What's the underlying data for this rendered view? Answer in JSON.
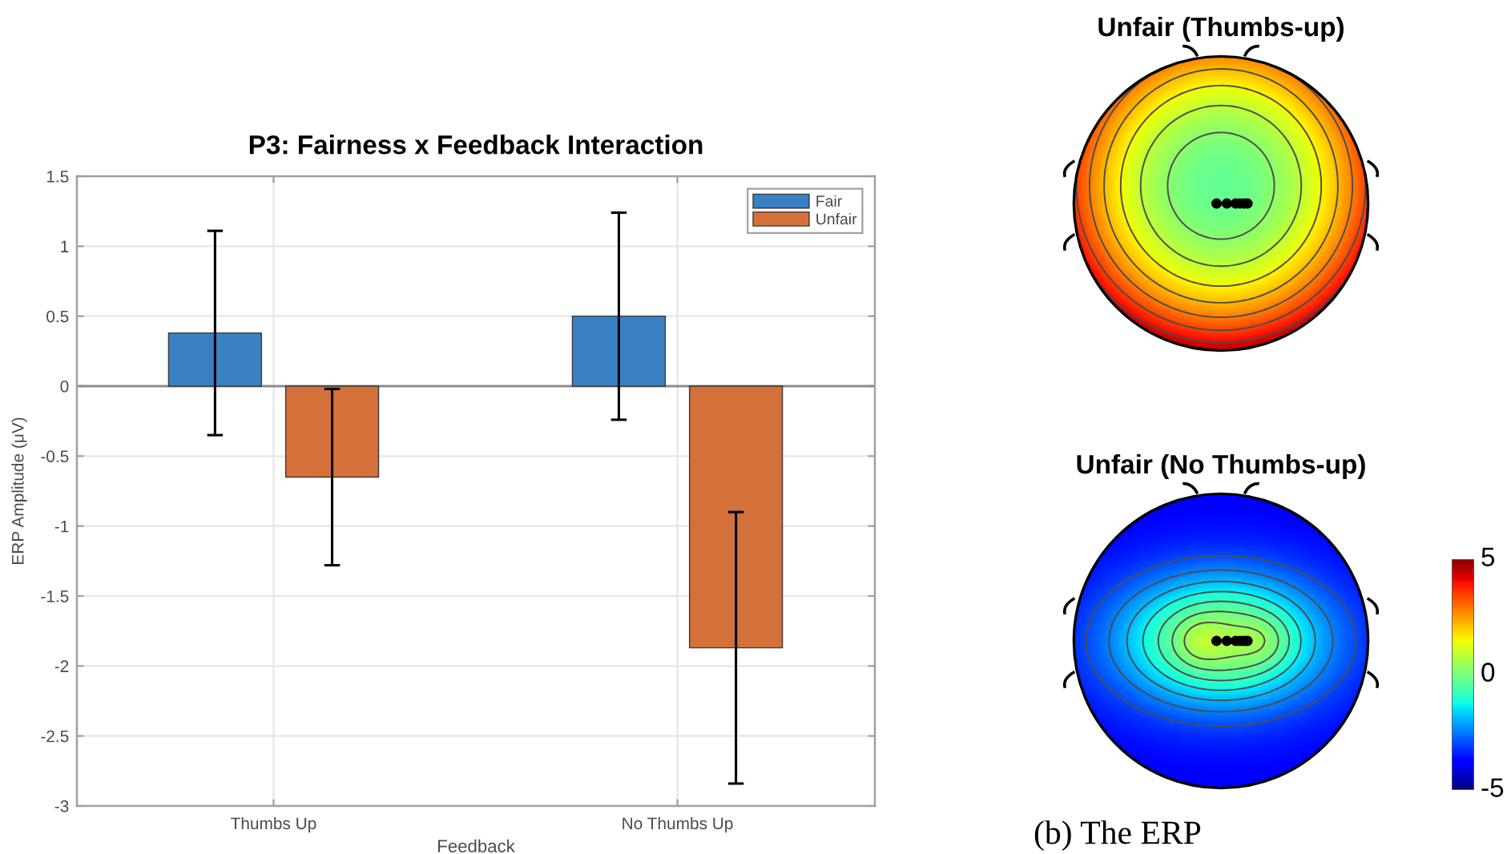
{
  "chart_data": [
    {
      "type": "bar",
      "title": "P3: Fairness x Feedback Interaction",
      "xlabel": "Feedback",
      "ylabel": "ERP Amplitude (μV)",
      "categories": [
        "Thumbs Up",
        "No Thumbs Up"
      ],
      "series": [
        {
          "name": "Fair",
          "color": "#3a80c4",
          "values": [
            0.38,
            0.5
          ],
          "errors": [
            0.73,
            0.74
          ]
        },
        {
          "name": "Unfair",
          "color": "#d4703a",
          "values": [
            -0.65,
            -1.87
          ],
          "errors": [
            0.63,
            0.97
          ]
        }
      ],
      "ylim": [
        -3,
        1.5
      ],
      "yticks": [
        -3,
        -2.5,
        -2,
        -1.5,
        -1,
        -0.5,
        0,
        0.5,
        1,
        1.5
      ],
      "grid": true,
      "legend": "top right",
      "ref_lines": [
        {
          "axis": "y",
          "value": 0,
          "color": "#8c8c8c"
        }
      ]
    },
    {
      "type": "other",
      "title": "Unfair (Thumbs-up)"
    },
    {
      "type": "other",
      "title": "Unfair (No Thumbs-up)",
      "annotations": [
        "(b) The ERP"
      ]
    },
    {
      "type": "other",
      "annotations": [
        "5",
        "0",
        "-5"
      ]
    }
  ]
}
